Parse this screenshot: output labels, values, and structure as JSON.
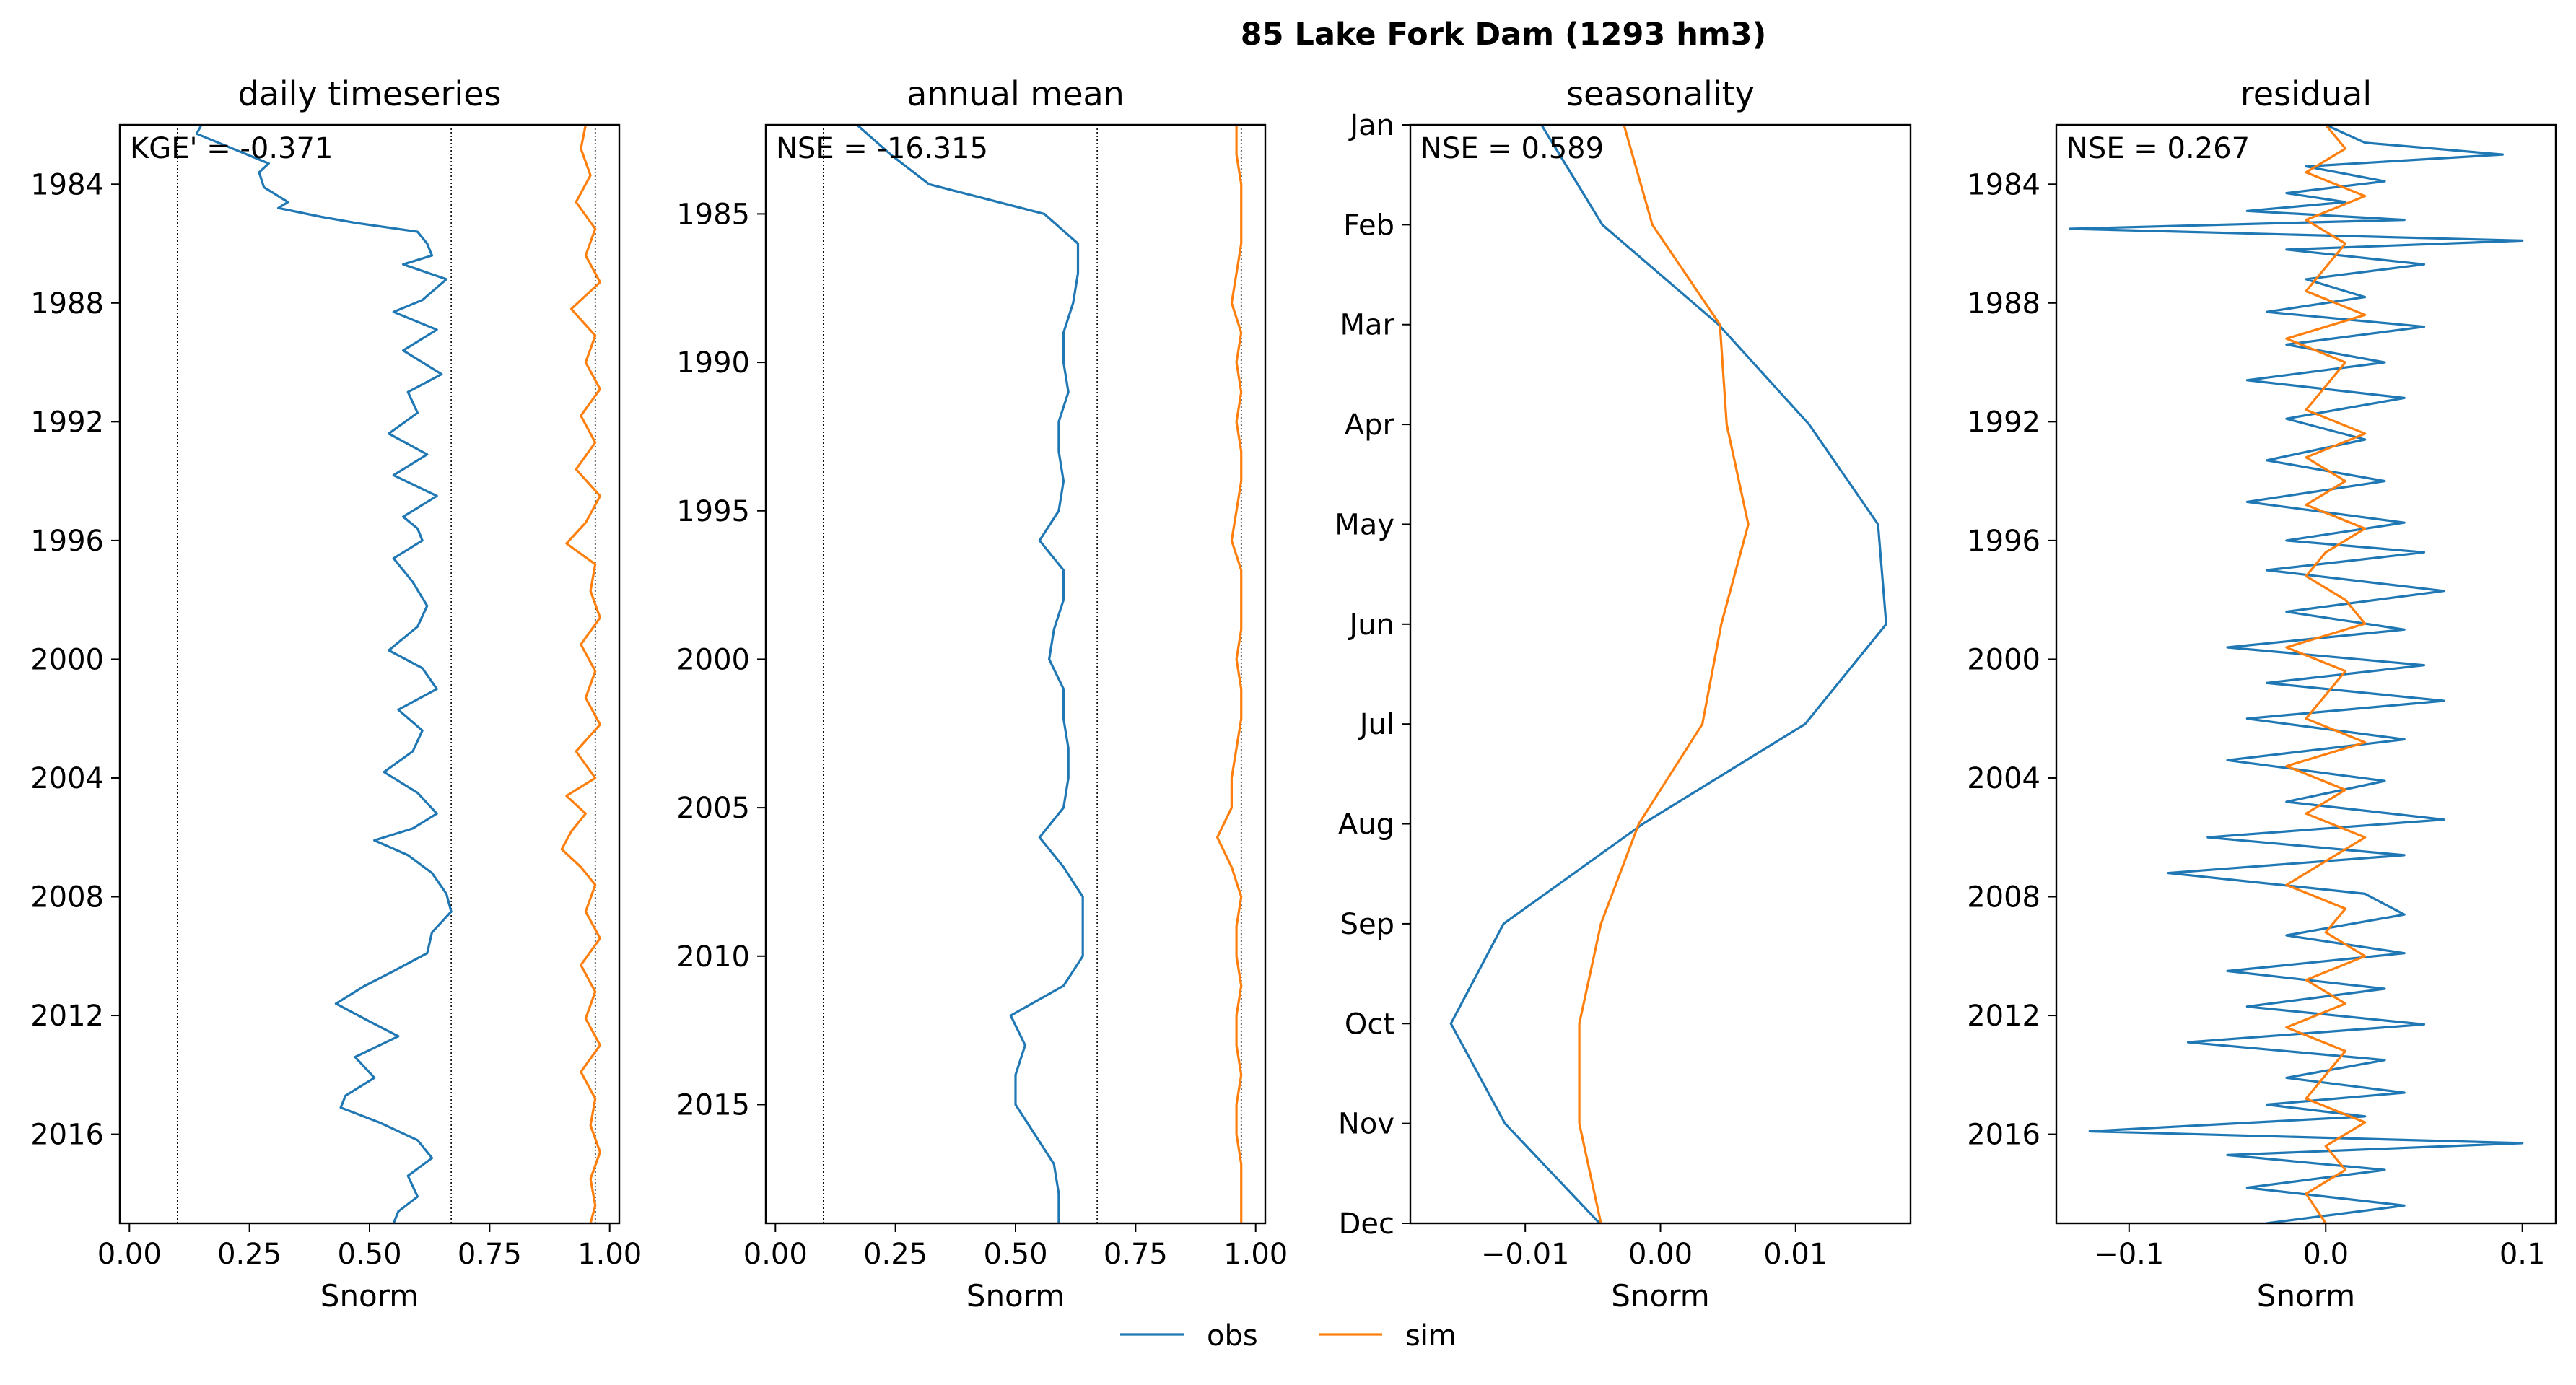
{
  "figure": {
    "suptitle": "85  Lake Fork Dam (1293 hm3)",
    "legend": {
      "placement": "bottom-center",
      "entries": [
        "obs",
        "sim"
      ]
    },
    "colors": {
      "obs": "#1f77b4",
      "sim": "#ff7f0e"
    }
  },
  "chart_data": [
    {
      "type": "line",
      "title": "daily timeseries",
      "xlabel": "Snorm",
      "ylabel": "",
      "annotation": "KGE' = -0.371",
      "xlim": [
        -0.02,
        1.02
      ],
      "ylim": [
        2019.0,
        1982.0
      ],
      "xticks": [
        0.0,
        0.25,
        0.5,
        0.75,
        1.0
      ],
      "xtick_labels": [
        "0.00",
        "0.25",
        "0.50",
        "0.75",
        "1.00"
      ],
      "yticks": [
        1984,
        1988,
        1992,
        1996,
        2000,
        2004,
        2008,
        2012,
        2016
      ],
      "ytick_labels": [
        "1984",
        "1988",
        "1992",
        "1996",
        "2000",
        "2004",
        "2008",
        "2012",
        "2016"
      ],
      "reference_lines": [
        0.1,
        0.67,
        0.97
      ],
      "grid": false,
      "series": [
        {
          "name": "obs",
          "color": "#1f77b4",
          "y": [
            1982.0,
            1982.3,
            1983.3,
            1983.6,
            1984.1,
            1984.4,
            1984.6,
            1984.8,
            1985.1,
            1985.3,
            1985.6,
            1986.0,
            1986.4,
            1986.7,
            1987.2,
            1987.9,
            1988.3,
            1988.9,
            1989.6,
            1990.4,
            1991.0,
            1991.7,
            1992.4,
            1993.1,
            1993.8,
            1994.5,
            1995.2,
            1995.6,
            1996.0,
            1996.6,
            1997.4,
            1998.2,
            1998.9,
            1999.7,
            2000.3,
            2001.0,
            2001.7,
            2002.4,
            2003.1,
            2003.8,
            2004.5,
            2005.2,
            2005.7,
            2006.1,
            2006.6,
            2007.2,
            2007.9,
            2008.5,
            2009.2,
            2009.9,
            2010.5,
            2011.0,
            2011.6,
            2012.2,
            2012.7,
            2013.4,
            2014.1,
            2014.7,
            2015.1,
            2015.6,
            2016.2,
            2016.8,
            2017.4,
            2018.1,
            2018.6,
            2019.0
          ],
          "x": [
            0.15,
            0.14,
            0.29,
            0.27,
            0.28,
            0.31,
            0.33,
            0.31,
            0.4,
            0.47,
            0.6,
            0.62,
            0.63,
            0.57,
            0.66,
            0.61,
            0.55,
            0.64,
            0.57,
            0.65,
            0.58,
            0.6,
            0.54,
            0.62,
            0.55,
            0.64,
            0.57,
            0.6,
            0.61,
            0.55,
            0.59,
            0.62,
            0.6,
            0.54,
            0.61,
            0.64,
            0.56,
            0.61,
            0.59,
            0.53,
            0.6,
            0.64,
            0.59,
            0.51,
            0.58,
            0.63,
            0.66,
            0.67,
            0.63,
            0.62,
            0.55,
            0.49,
            0.43,
            0.5,
            0.56,
            0.47,
            0.51,
            0.45,
            0.44,
            0.52,
            0.6,
            0.63,
            0.58,
            0.6,
            0.56,
            0.55
          ]
        },
        {
          "name": "sim",
          "color": "#ff7f0e",
          "y": [
            1982.0,
            1982.8,
            1983.7,
            1984.6,
            1985.5,
            1986.4,
            1987.3,
            1988.2,
            1989.1,
            1990.0,
            1990.9,
            1991.8,
            1992.7,
            1993.6,
            1994.5,
            1995.4,
            1996.1,
            1996.8,
            1997.7,
            1998.6,
            1999.5,
            2000.4,
            2001.3,
            2002.2,
            2003.1,
            2004.0,
            2004.6,
            2005.2,
            2005.8,
            2006.4,
            2007.0,
            2007.6,
            2008.5,
            2009.4,
            2010.3,
            2011.2,
            2012.1,
            2013.0,
            2013.9,
            2014.8,
            2015.7,
            2016.6,
            2017.5,
            2018.4,
            2019.0
          ],
          "x": [
            0.95,
            0.94,
            0.96,
            0.93,
            0.97,
            0.95,
            0.98,
            0.92,
            0.97,
            0.95,
            0.98,
            0.94,
            0.97,
            0.93,
            0.98,
            0.95,
            0.91,
            0.97,
            0.96,
            0.98,
            0.94,
            0.97,
            0.95,
            0.98,
            0.93,
            0.97,
            0.91,
            0.95,
            0.92,
            0.9,
            0.94,
            0.97,
            0.95,
            0.98,
            0.94,
            0.97,
            0.95,
            0.98,
            0.94,
            0.97,
            0.96,
            0.98,
            0.96,
            0.97,
            0.96
          ]
        }
      ]
    },
    {
      "type": "line",
      "title": "annual mean",
      "xlabel": "Snorm",
      "ylabel": "",
      "annotation": "NSE = -16.315",
      "xlim": [
        -0.02,
        1.02
      ],
      "ylim": [
        2019.0,
        1982.0
      ],
      "xticks": [
        0.0,
        0.25,
        0.5,
        0.75,
        1.0
      ],
      "xtick_labels": [
        "0.00",
        "0.25",
        "0.50",
        "0.75",
        "1.00"
      ],
      "yticks": [
        1985,
        1990,
        1995,
        2000,
        2005,
        2010,
        2015
      ],
      "ytick_labels": [
        "1985",
        "1990",
        "1995",
        "2000",
        "2005",
        "2010",
        "2015"
      ],
      "reference_lines": [
        0.1,
        0.67,
        0.97
      ],
      "grid": false,
      "series": [
        {
          "name": "obs",
          "color": "#1f77b4",
          "y": [
            1982.0,
            1983.0,
            1984.0,
            1985.0,
            1986.0,
            1987.0,
            1988.0,
            1989.0,
            1990.0,
            1991.0,
            1992.0,
            1993.0,
            1994.0,
            1995.0,
            1996.0,
            1997.0,
            1998.0,
            1999.0,
            2000.0,
            2001.0,
            2002.0,
            2003.0,
            2004.0,
            2005.0,
            2006.0,
            2007.0,
            2008.0,
            2009.0,
            2010.0,
            2011.0,
            2012.0,
            2013.0,
            2014.0,
            2015.0,
            2016.0,
            2017.0,
            2018.0,
            2019.0
          ],
          "x": [
            0.17,
            0.24,
            0.32,
            0.56,
            0.63,
            0.63,
            0.62,
            0.6,
            0.6,
            0.61,
            0.59,
            0.59,
            0.6,
            0.59,
            0.55,
            0.6,
            0.6,
            0.58,
            0.57,
            0.6,
            0.6,
            0.61,
            0.61,
            0.6,
            0.55,
            0.6,
            0.64,
            0.64,
            0.64,
            0.6,
            0.49,
            0.52,
            0.5,
            0.5,
            0.54,
            0.58,
            0.59,
            0.59
          ]
        },
        {
          "name": "sim",
          "color": "#ff7f0e",
          "y": [
            1982.0,
            1983.0,
            1984.0,
            1985.0,
            1986.0,
            1987.0,
            1988.0,
            1989.0,
            1990.0,
            1991.0,
            1992.0,
            1993.0,
            1994.0,
            1995.0,
            1996.0,
            1997.0,
            1998.0,
            1999.0,
            2000.0,
            2001.0,
            2002.0,
            2003.0,
            2004.0,
            2005.0,
            2006.0,
            2007.0,
            2008.0,
            2009.0,
            2010.0,
            2011.0,
            2012.0,
            2013.0,
            2014.0,
            2015.0,
            2016.0,
            2017.0,
            2018.0,
            2019.0
          ],
          "x": [
            0.96,
            0.96,
            0.97,
            0.97,
            0.97,
            0.96,
            0.95,
            0.97,
            0.96,
            0.97,
            0.96,
            0.97,
            0.97,
            0.96,
            0.95,
            0.97,
            0.97,
            0.97,
            0.96,
            0.97,
            0.97,
            0.96,
            0.95,
            0.95,
            0.92,
            0.95,
            0.97,
            0.96,
            0.96,
            0.97,
            0.96,
            0.96,
            0.97,
            0.96,
            0.96,
            0.97,
            0.97,
            0.97
          ]
        }
      ]
    },
    {
      "type": "line",
      "title": "seasonality",
      "xlabel": "Snorm",
      "ylabel": "",
      "annotation": "NSE = 0.589",
      "xlim": [
        -0.0185,
        0.0185
      ],
      "ylim": [
        12.0,
        1.0
      ],
      "xticks": [
        -0.01,
        0.0,
        0.01
      ],
      "xtick_labels": [
        "−0.01",
        "0.00",
        "0.01"
      ],
      "yticks": [
        1,
        2,
        3,
        4,
        5,
        6,
        7,
        8,
        9,
        10,
        11,
        12
      ],
      "ytick_labels": [
        "Jan",
        "Feb",
        "Mar",
        "Apr",
        "May",
        "Jun",
        "Jul",
        "Aug",
        "Sep",
        "Oct",
        "Nov",
        "Dec"
      ],
      "reference_lines": [],
      "grid": false,
      "series": [
        {
          "name": "obs",
          "color": "#1f77b4",
          "y": [
            0.8,
            1.0,
            2.0,
            3.0,
            4.0,
            5.0,
            6.0,
            7.0,
            8.0,
            9.0,
            10.0,
            11.0,
            12.0
          ],
          "x": [
            -0.0097,
            -0.0088,
            -0.0043,
            0.0043,
            0.011,
            0.0161,
            0.0167,
            0.0107,
            -0.0013,
            -0.0116,
            -0.0155,
            -0.0115,
            -0.0045
          ]
        },
        {
          "name": "sim",
          "color": "#ff7f0e",
          "y": [
            0.8,
            1.0,
            2.0,
            3.0,
            4.0,
            5.0,
            6.0,
            7.0,
            8.0,
            9.0,
            10.0,
            11.0,
            12.0
          ],
          "x": [
            -0.0029,
            -0.0027,
            -0.0006,
            0.0044,
            0.0049,
            0.0065,
            0.0045,
            0.0031,
            -0.0016,
            -0.0044,
            -0.006,
            -0.006,
            -0.0044
          ]
        }
      ]
    },
    {
      "type": "line",
      "title": "residual",
      "xlabel": "Snorm",
      "ylabel": "",
      "annotation": "NSE = 0.267",
      "xlim": [
        -0.137,
        0.117
      ],
      "ylim": [
        2019.0,
        1982.0
      ],
      "xticks": [
        -0.1,
        0.0,
        0.1
      ],
      "xtick_labels": [
        "−0.1",
        "0.0",
        "0.1"
      ],
      "yticks": [
        1984,
        1988,
        1992,
        1996,
        2000,
        2004,
        2008,
        2012,
        2016
      ],
      "ytick_labels": [
        "1984",
        "1988",
        "1992",
        "1996",
        "2000",
        "2004",
        "2008",
        "2012",
        "2016"
      ],
      "reference_lines": [],
      "grid": false,
      "series": [
        {
          "name": "obs",
          "color": "#1f77b4",
          "y": [
            1982.0,
            1982.6,
            1983.0,
            1983.4,
            1983.9,
            1984.3,
            1984.6,
            1984.9,
            1985.2,
            1985.5,
            1985.9,
            1986.2,
            1986.7,
            1987.2,
            1987.8,
            1988.3,
            1988.8,
            1989.4,
            1990.0,
            1990.6,
            1991.2,
            1991.9,
            1992.6,
            1993.3,
            1994.0,
            1994.7,
            1995.4,
            1996.0,
            1996.4,
            1997.0,
            1997.7,
            1998.4,
            1999.0,
            1999.6,
            2000.2,
            2000.8,
            2001.4,
            2002.0,
            2002.7,
            2003.4,
            2004.1,
            2004.8,
            2005.4,
            2006.0,
            2006.6,
            2007.2,
            2007.9,
            2008.6,
            2009.3,
            2009.9,
            2010.5,
            2011.1,
            2011.7,
            2012.3,
            2012.9,
            2013.5,
            2014.1,
            2014.6,
            2015.0,
            2015.4,
            2015.9,
            2016.3,
            2016.7,
            2017.2,
            2017.8,
            2018.4,
            2019.0
          ],
          "x": [
            0.0,
            0.02,
            0.09,
            -0.01,
            0.03,
            -0.02,
            0.01,
            -0.04,
            0.04,
            -0.13,
            0.1,
            -0.02,
            0.05,
            -0.01,
            0.02,
            -0.03,
            0.05,
            -0.02,
            0.03,
            -0.04,
            0.04,
            -0.02,
            0.02,
            -0.03,
            0.03,
            -0.04,
            0.04,
            -0.02,
            0.05,
            -0.03,
            0.06,
            -0.02,
            0.04,
            -0.05,
            0.05,
            -0.03,
            0.06,
            -0.04,
            0.04,
            -0.05,
            0.03,
            -0.02,
            0.06,
            -0.06,
            0.04,
            -0.08,
            0.02,
            0.04,
            -0.02,
            0.04,
            -0.05,
            0.03,
            -0.04,
            0.05,
            -0.07,
            0.03,
            -0.02,
            0.04,
            -0.03,
            0.02,
            -0.12,
            0.1,
            -0.05,
            0.03,
            -0.04,
            0.04,
            -0.03
          ]
        },
        {
          "name": "sim",
          "color": "#ff7f0e",
          "y": [
            1982.0,
            1982.8,
            1983.6,
            1984.4,
            1985.2,
            1986.0,
            1986.8,
            1987.6,
            1988.4,
            1989.2,
            1990.0,
            1990.8,
            1991.6,
            1992.4,
            1993.2,
            1994.0,
            1994.8,
            1995.6,
            1996.4,
            1997.2,
            1998.0,
            1998.8,
            1999.6,
            2000.4,
            2001.2,
            2002.0,
            2002.8,
            2003.6,
            2004.4,
            2005.2,
            2006.0,
            2006.8,
            2007.6,
            2008.4,
            2009.2,
            2010.0,
            2010.8,
            2011.6,
            2012.4,
            2013.2,
            2014.0,
            2014.8,
            2015.6,
            2016.4,
            2017.2,
            2018.0,
            2019.0
          ],
          "x": [
            0.0,
            0.01,
            -0.01,
            0.02,
            -0.01,
            0.01,
            0.0,
            -0.01,
            0.02,
            -0.02,
            0.01,
            0.0,
            -0.01,
            0.02,
            -0.01,
            0.01,
            -0.01,
            0.02,
            0.0,
            -0.01,
            0.01,
            0.02,
            -0.02,
            0.01,
            0.0,
            -0.01,
            0.02,
            -0.02,
            0.01,
            -0.01,
            0.02,
            0.0,
            -0.02,
            0.01,
            0.0,
            0.02,
            -0.01,
            0.01,
            -0.02,
            0.01,
            0.0,
            -0.01,
            0.02,
            0.0,
            0.01,
            -0.01,
            0.0
          ]
        }
      ]
    }
  ]
}
